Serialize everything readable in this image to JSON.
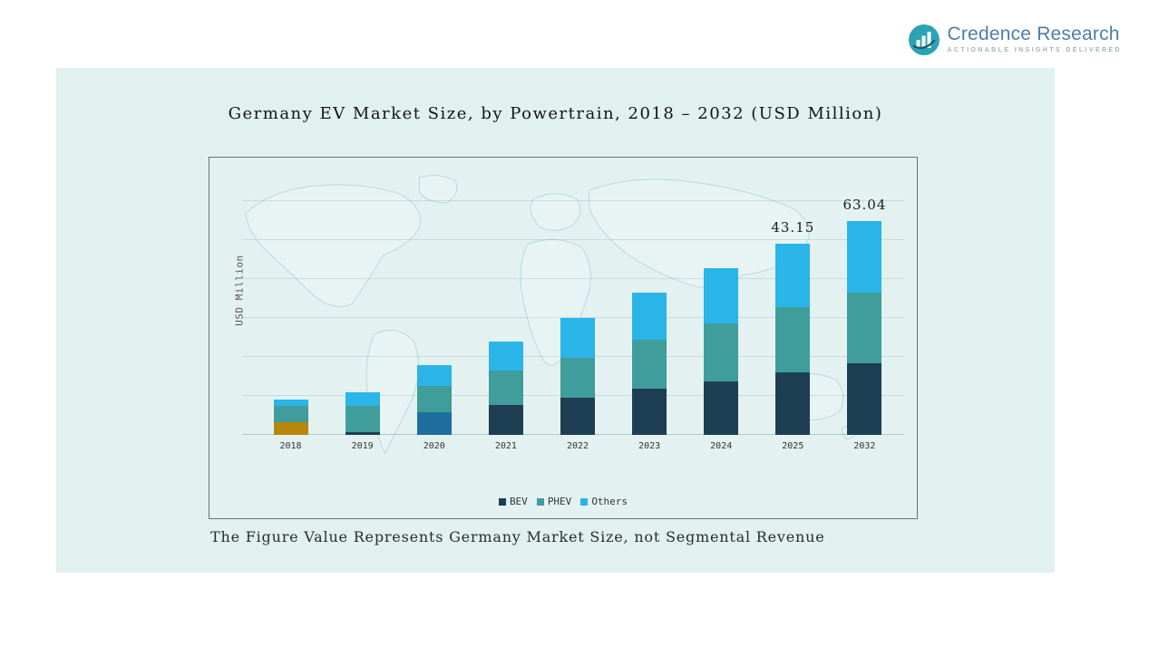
{
  "header": {
    "logo": {
      "brand": "Credence Research",
      "tagline": "Actionable Insights Delivered",
      "icon": "bar-chart-circle-icon",
      "colors": {
        "icon": "#2aa3b5",
        "icon_dark": "#16606e",
        "text": "#4d7ea8",
        "tagline": "#9fb4bf"
      }
    }
  },
  "panel": {
    "background": "#e0f1ef",
    "chart_border": "#6f6f6f",
    "map_outline": "#b9d8dc"
  },
  "chart_data": {
    "type": "bar",
    "stacked": true,
    "title": "Germany EV Market Size, by Powertrain, 2018 – 2032 (USD Million)",
    "ylabel": "USD Million",
    "footnote": "The Figure Value Represents Germany Market Size, not Segmental Revenue",
    "categories": [
      "2018",
      "2019",
      "2020",
      "2021",
      "2022",
      "2023",
      "2024",
      "2025",
      "2032"
    ],
    "series": [
      {
        "name": "BEV",
        "color": "#1d3e53",
        "values": [
          2.9,
          0.6,
          5.1,
          6.7,
          8.4,
          10.4,
          12.1,
          14.2,
          21.0
        ]
      },
      {
        "name": "PHEV",
        "color": "#3f9d9b",
        "values": [
          3.6,
          6.0,
          5.9,
          7.8,
          9.0,
          11.0,
          13.1,
          14.7,
          21.0
        ]
      },
      {
        "name": "Others",
        "color": "#29b5e8",
        "values": [
          1.5,
          3.0,
          4.7,
          6.6,
          9.0,
          10.7,
          12.4,
          14.25,
          21.04
        ]
      }
    ],
    "totals": [
      8.0,
      9.6,
      15.7,
      21.1,
      26.4,
      32.1,
      37.6,
      43.15,
      63.04
    ],
    "value_labels": {
      "2025": "43.15",
      "2032": "63.04"
    },
    "segment_color_overrides": [
      {
        "category": "2018",
        "series": "BEV",
        "color": "#b8860b"
      },
      {
        "category": "2020",
        "series": "BEV",
        "color": "#1d6d9e"
      }
    ],
    "ylim": [
      0,
      63.04
    ],
    "grid": true,
    "legend_position": "bottom",
    "legend_labels": [
      "BEV",
      "PHEV",
      "Others"
    ]
  }
}
